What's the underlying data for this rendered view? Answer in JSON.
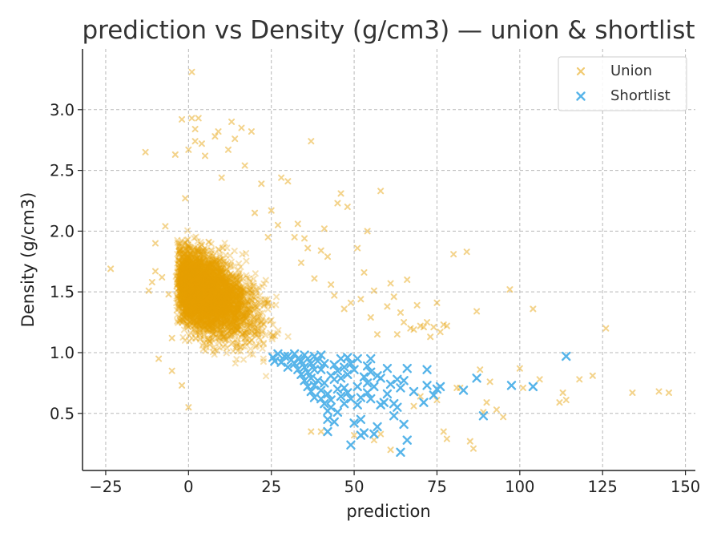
{
  "chart_data": {
    "type": "scatter",
    "title": "prediction vs Density (g/cm3) — union & shortlist",
    "xlabel": "prediction",
    "ylabel": "Density (g/cm3)",
    "xlim": [
      -32,
      153
    ],
    "ylim": [
      0.03,
      3.5
    ],
    "x_ticks": [
      -25,
      0,
      25,
      50,
      75,
      100,
      125,
      150
    ],
    "x_tick_labels": [
      "−25",
      "0",
      "25",
      "50",
      "75",
      "100",
      "125",
      "150"
    ],
    "y_ticks": [
      0.5,
      1.0,
      1.5,
      2.0,
      2.5,
      3.0
    ],
    "y_tick_labels": [
      "0.5",
      "1.0",
      "1.5",
      "2.0",
      "2.5",
      "3.0"
    ],
    "grid": true,
    "legend_position": "top-right",
    "marker": "x",
    "series": [
      {
        "name": "Union",
        "color": "#E69F00",
        "opacity": 0.35,
        "values": [
          [
            -23.5,
            1.69
          ],
          [
            -13,
            2.65
          ],
          [
            -11,
            1.58
          ],
          [
            -12,
            1.51
          ],
          [
            -10,
            1.9
          ],
          [
            -10,
            1.67
          ],
          [
            -9,
            0.95
          ],
          [
            -8,
            1.62
          ],
          [
            -7,
            2.04
          ],
          [
            -6,
            1.48
          ],
          [
            -5,
            1.12
          ],
          [
            -5,
            0.85
          ],
          [
            -4,
            2.63
          ],
          [
            -3,
            1.76
          ],
          [
            -2,
            2.92
          ],
          [
            -2,
            0.73
          ],
          [
            -1,
            2.27
          ],
          [
            0,
            2.67
          ],
          [
            0,
            0.55
          ],
          [
            1,
            2.93
          ],
          [
            1,
            3.31
          ],
          [
            2,
            2.84
          ],
          [
            2,
            2.74
          ],
          [
            3,
            2.93
          ],
          [
            4,
            2.72
          ],
          [
            5,
            2.62
          ],
          [
            8,
            2.78
          ],
          [
            9,
            2.82
          ],
          [
            10,
            2.44
          ],
          [
            12,
            2.67
          ],
          [
            13,
            2.9
          ],
          [
            14,
            2.76
          ],
          [
            16,
            2.85
          ],
          [
            17,
            2.54
          ],
          [
            19,
            2.82
          ],
          [
            20,
            2.15
          ],
          [
            22,
            2.39
          ],
          [
            24,
            1.95
          ],
          [
            25,
            2.17
          ],
          [
            27,
            2.05
          ],
          [
            28,
            2.44
          ],
          [
            30,
            2.41
          ],
          [
            32,
            1.95
          ],
          [
            33,
            2.06
          ],
          [
            34,
            1.74
          ],
          [
            35,
            1.94
          ],
          [
            36,
            1.86
          ],
          [
            37,
            2.74
          ],
          [
            38,
            1.61
          ],
          [
            40,
            1.84
          ],
          [
            41,
            2.02
          ],
          [
            42,
            1.79
          ],
          [
            43,
            1.56
          ],
          [
            44,
            1.47
          ],
          [
            45,
            2.23
          ],
          [
            46,
            2.31
          ],
          [
            47,
            1.36
          ],
          [
            48,
            2.2
          ],
          [
            49,
            1.41
          ],
          [
            51,
            1.86
          ],
          [
            52,
            1.44
          ],
          [
            53,
            1.66
          ],
          [
            54,
            2.0
          ],
          [
            55,
            1.29
          ],
          [
            56,
            1.51
          ],
          [
            57,
            1.15
          ],
          [
            58,
            2.33
          ],
          [
            60,
            1.38
          ],
          [
            61,
            1.57
          ],
          [
            62,
            1.46
          ],
          [
            63,
            1.15
          ],
          [
            64,
            1.33
          ],
          [
            65,
            1.25
          ],
          [
            66,
            1.6
          ],
          [
            67,
            1.2
          ],
          [
            68,
            1.19
          ],
          [
            69,
            1.39
          ],
          [
            70,
            1.22
          ],
          [
            71,
            1.21
          ],
          [
            72,
            1.25
          ],
          [
            73,
            1.13
          ],
          [
            74,
            1.21
          ],
          [
            75,
            1.41
          ],
          [
            76,
            1.17
          ],
          [
            77,
            1.23
          ],
          [
            78,
            1.22
          ],
          [
            80,
            1.81
          ],
          [
            81,
            0.71
          ],
          [
            82,
            0.71
          ],
          [
            84,
            1.83
          ],
          [
            85,
            0.27
          ],
          [
            86,
            0.21
          ],
          [
            87,
            1.34
          ],
          [
            88,
            0.86
          ],
          [
            89,
            0.51
          ],
          [
            90,
            0.59
          ],
          [
            91,
            0.76
          ],
          [
            93,
            0.53
          ],
          [
            95,
            0.47
          ],
          [
            97,
            1.52
          ],
          [
            100,
            0.87
          ],
          [
            101,
            0.71
          ],
          [
            104,
            1.36
          ],
          [
            106,
            0.78
          ],
          [
            112,
            0.59
          ],
          [
            113,
            0.67
          ],
          [
            114,
            0.61
          ],
          [
            118,
            0.78
          ],
          [
            122,
            0.81
          ],
          [
            126,
            1.2
          ],
          [
            134,
            0.67
          ],
          [
            142,
            0.68
          ],
          [
            145,
            0.67
          ],
          [
            37,
            0.35
          ],
          [
            40,
            0.35
          ],
          [
            50,
            0.32
          ],
          [
            56,
            0.28
          ],
          [
            58,
            0.33
          ],
          [
            61,
            0.2
          ],
          [
            77,
            0.35
          ],
          [
            78,
            0.29
          ],
          [
            75,
            0.61
          ],
          [
            72,
            0.86
          ],
          [
            70,
            0.64
          ],
          [
            68,
            0.56
          ]
        ]
      },
      {
        "name": "Shortlist",
        "color": "#56B4E9",
        "opacity": 1,
        "values": [
          [
            25.5,
            0.96
          ],
          [
            26,
            0.93
          ],
          [
            27,
            0.99
          ],
          [
            28,
            0.92
          ],
          [
            29,
            0.97
          ],
          [
            30,
            0.88
          ],
          [
            30,
            0.97
          ],
          [
            31,
            0.94
          ],
          [
            32,
            0.91
          ],
          [
            32,
            0.99
          ],
          [
            33,
            0.86
          ],
          [
            33,
            0.95
          ],
          [
            34,
            0.93
          ],
          [
            34,
            0.82
          ],
          [
            35,
            0.98
          ],
          [
            35,
            0.77
          ],
          [
            35,
            0.88
          ],
          [
            36,
            0.72
          ],
          [
            36,
            0.95
          ],
          [
            36,
            0.84
          ],
          [
            37,
            0.91
          ],
          [
            37,
            0.79
          ],
          [
            37,
            0.68
          ],
          [
            38,
            0.97
          ],
          [
            38,
            0.73
          ],
          [
            38,
            0.86
          ],
          [
            38,
            0.63
          ],
          [
            39,
            0.93
          ],
          [
            39,
            0.77
          ],
          [
            40,
            0.69
          ],
          [
            40,
            0.98
          ],
          [
            40,
            0.86
          ],
          [
            40,
            0.62
          ],
          [
            41,
            0.58
          ],
          [
            41,
            0.75
          ],
          [
            41,
            0.91
          ],
          [
            42,
            0.52
          ],
          [
            42,
            0.66
          ],
          [
            42,
            0.45
          ],
          [
            42,
            0.35
          ],
          [
            43,
            0.81
          ],
          [
            43,
            0.55
          ],
          [
            43,
            0.61
          ],
          [
            44,
            0.43
          ],
          [
            44,
            0.78
          ],
          [
            44,
            0.9
          ],
          [
            45,
            0.7
          ],
          [
            45,
            0.85
          ],
          [
            45,
            0.51
          ],
          [
            46,
            0.95
          ],
          [
            46,
            0.64
          ],
          [
            46,
            0.79
          ],
          [
            47,
            0.88
          ],
          [
            47,
            0.58
          ],
          [
            47,
            0.71
          ],
          [
            48,
            0.96
          ],
          [
            48,
            0.82
          ],
          [
            48,
            0.67
          ],
          [
            49,
            0.24
          ],
          [
            49,
            0.91
          ],
          [
            49,
            0.62
          ],
          [
            50,
            0.42
          ],
          [
            50,
            0.86
          ],
          [
            51,
            0.72
          ],
          [
            51,
            0.95
          ],
          [
            51,
            0.57
          ],
          [
            52,
            0.32
          ],
          [
            52,
            0.63
          ],
          [
            52,
            0.45
          ],
          [
            53,
            0.8
          ],
          [
            53,
            0.34
          ],
          [
            54,
            0.89
          ],
          [
            54,
            0.75
          ],
          [
            54,
            0.67
          ],
          [
            55,
            0.95
          ],
          [
            55,
            0.84
          ],
          [
            55,
            0.62
          ],
          [
            56,
            0.72
          ],
          [
            56,
            0.33
          ],
          [
            57,
            0.81
          ],
          [
            57,
            0.39
          ],
          [
            58,
            0.79
          ],
          [
            58,
            0.57
          ],
          [
            59,
            0.59
          ],
          [
            60,
            0.87
          ],
          [
            60,
            0.66
          ],
          [
            61,
            0.74
          ],
          [
            62,
            0.58
          ],
          [
            62,
            0.48
          ],
          [
            63,
            0.78
          ],
          [
            63,
            0.55
          ],
          [
            64,
            0.18
          ],
          [
            64,
            0.71
          ],
          [
            65,
            0.41
          ],
          [
            65,
            0.77
          ],
          [
            66,
            0.87
          ],
          [
            66,
            0.28
          ],
          [
            68,
            0.68
          ],
          [
            71,
            0.59
          ],
          [
            72,
            0.86
          ],
          [
            72,
            0.73
          ],
          [
            74,
            0.65
          ],
          [
            75,
            0.7
          ],
          [
            76,
            0.72
          ],
          [
            83,
            0.69
          ],
          [
            87,
            0.79
          ],
          [
            89,
            0.48
          ],
          [
            97.5,
            0.73
          ],
          [
            104,
            0.72
          ],
          [
            114,
            0.97
          ]
        ]
      }
    ]
  }
}
